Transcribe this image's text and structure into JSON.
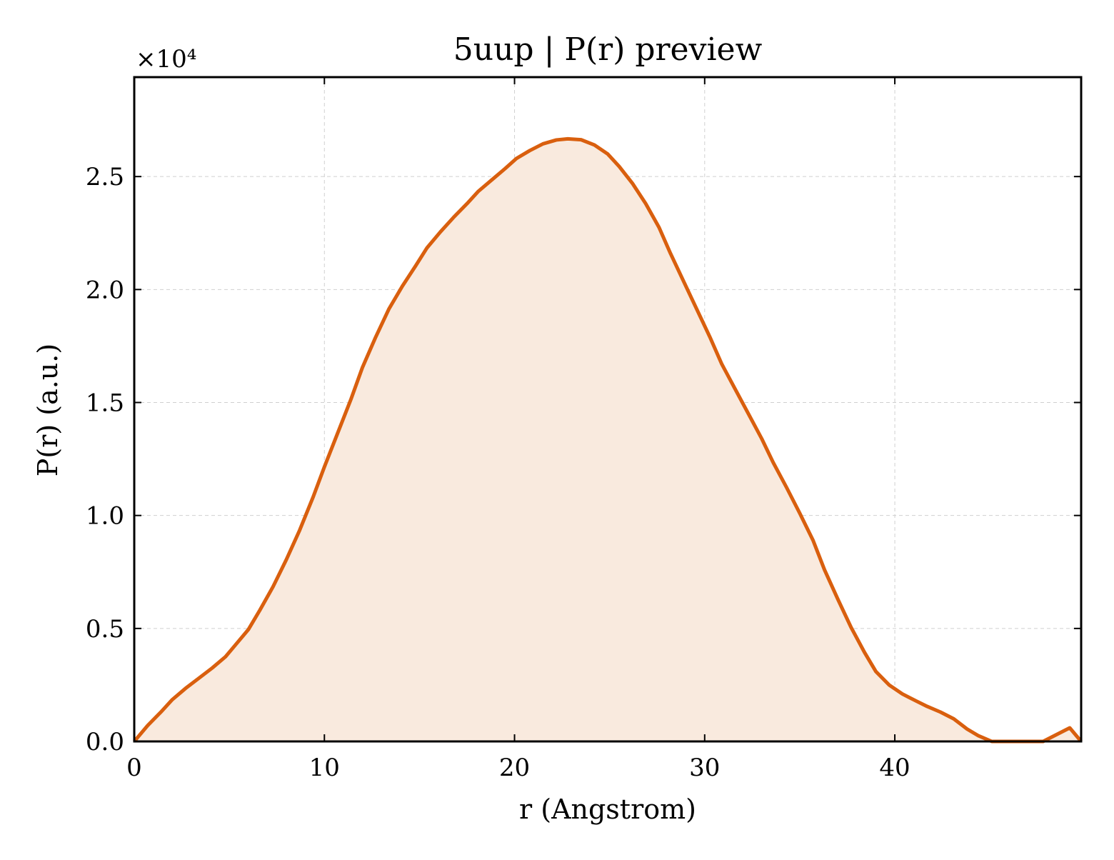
{
  "chart_data": {
    "type": "area",
    "title": "5uup | P(r) preview",
    "xlabel": "r (Angstrom)",
    "ylabel": "P(r) (a.u.)",
    "y_multiplier": "×10⁴",
    "y_scale_factor": 10000,
    "xlim": [
      0,
      49.8
    ],
    "ylim": [
      0,
      29400
    ],
    "x_ticks": [
      0,
      10,
      20,
      30,
      40
    ],
    "x_tick_labels": [
      "0",
      "10",
      "20",
      "30",
      "40"
    ],
    "y_ticks": [
      0,
      5000,
      10000,
      15000,
      20000,
      25000
    ],
    "y_tick_labels": [
      "0.0",
      "0.5",
      "1.0",
      "1.5",
      "2.0",
      "2.5"
    ],
    "grid": true,
    "colors": {
      "line": "#d95f0e",
      "fill": "#f9eade"
    },
    "series": [
      {
        "x": [
          0,
          0.7,
          1.4,
          2.0,
          2.7,
          3.4,
          4.1,
          4.8,
          5.3,
          6.0,
          6.6,
          7.3,
          8.0,
          8.7,
          9.4,
          10.0,
          10.7,
          11.4,
          12.0,
          12.7,
          13.4,
          14.1,
          14.8,
          15.4,
          16.1,
          16.8,
          17.5,
          18.1,
          18.8,
          19.5,
          20.1,
          20.8,
          21.5,
          22.2,
          22.8,
          23.5,
          24.2,
          24.9,
          25.5,
          26.2,
          26.9,
          27.6,
          28.2,
          28.9,
          29.6,
          30.3,
          30.9,
          31.6,
          32.3,
          33.0,
          33.6,
          34.3,
          35.0,
          35.7,
          36.3,
          37.0,
          37.7,
          38.4,
          39.0,
          39.7,
          40.4,
          41.1,
          41.7,
          42.4,
          43.1,
          43.8,
          44.4,
          45.1,
          45.8,
          46.5,
          47.1,
          47.8,
          48.5,
          49.2,
          49.8
        ],
        "y": [
          0,
          700,
          1300,
          1850,
          2350,
          2800,
          3250,
          3750,
          4250,
          4950,
          5800,
          6850,
          8050,
          9350,
          10800,
          12150,
          13650,
          15150,
          16550,
          17900,
          19150,
          20150,
          21050,
          21850,
          22550,
          23200,
          23800,
          24350,
          24850,
          25350,
          25800,
          26150,
          26450,
          26620,
          26670,
          26630,
          26400,
          26000,
          25450,
          24700,
          23800,
          22750,
          21600,
          20350,
          19100,
          17850,
          16700,
          15600,
          14500,
          13400,
          12350,
          11250,
          10100,
          8900,
          7600,
          6300,
          5050,
          3950,
          3100,
          2500,
          2100,
          1800,
          1550,
          1300,
          1000,
          550,
          250,
          0,
          -100,
          -150,
          -100,
          0,
          300,
          600,
          0
        ]
      }
    ]
  }
}
